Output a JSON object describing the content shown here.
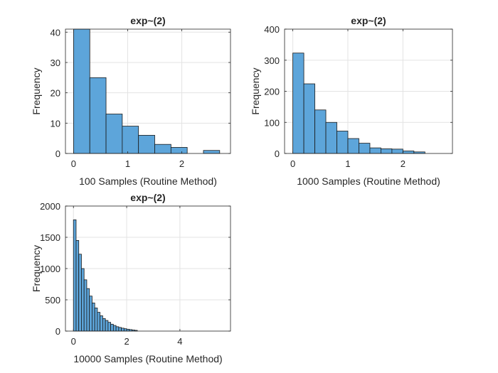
{
  "figure": {
    "background": "#ffffff"
  },
  "chart_data": [
    {
      "type": "bar",
      "title": "exp~(2)",
      "xlabel": "100 Samples (Routine Method)",
      "ylabel": "Frequency",
      "bar_color": "#5DA5DA",
      "edge_color": "#1a1a1a",
      "xlim": [
        -0.15,
        2.9
      ],
      "ylim": [
        0,
        41
      ],
      "xticks": [
        0,
        1,
        2
      ],
      "yticks": [
        0,
        10,
        20,
        30,
        40
      ],
      "grid": true,
      "bin_edges": [
        0,
        0.3,
        0.6,
        0.9,
        1.2,
        1.5,
        1.8,
        2.1,
        2.4,
        2.7
      ],
      "values": [
        41,
        25,
        13,
        9,
        6,
        3,
        2,
        0,
        1
      ]
    },
    {
      "type": "bar",
      "title": "exp~(2)",
      "xlabel": "1000 Samples (Routine Method)",
      "ylabel": "Frequency",
      "bar_color": "#5DA5DA",
      "edge_color": "#1a1a1a",
      "xlim": [
        -0.15,
        2.9
      ],
      "ylim": [
        0,
        400
      ],
      "xticks": [
        0,
        1,
        2
      ],
      "yticks": [
        0,
        100,
        200,
        300,
        400
      ],
      "grid": true,
      "bin_edges": [
        0,
        0.2,
        0.4,
        0.6,
        0.8,
        1.0,
        1.2,
        1.4,
        1.6,
        1.8,
        2.0,
        2.2,
        2.4
      ],
      "values": [
        323,
        224,
        140,
        100,
        72,
        48,
        33,
        18,
        15,
        14,
        8,
        5
      ]
    },
    {
      "type": "bar",
      "title": "exp~(2)",
      "xlabel": "10000 Samples (Routine Method)",
      "ylabel": "Frequency",
      "bar_color": "#5DA5DA",
      "edge_color": "#1a1a1a",
      "xlim": [
        -0.3,
        5.9
      ],
      "ylim": [
        0,
        2000
      ],
      "xticks": [
        0,
        2,
        4
      ],
      "yticks": [
        0,
        500,
        1000,
        1500,
        2000
      ],
      "grid": true,
      "bin_edges": [
        0,
        0.1,
        0.2,
        0.3,
        0.4,
        0.5,
        0.6,
        0.7,
        0.8,
        0.9,
        1.0,
        1.1,
        1.2,
        1.3,
        1.4,
        1.5,
        1.6,
        1.7,
        1.8,
        1.9,
        2.0,
        2.1,
        2.2,
        2.3,
        2.4
      ],
      "values": [
        1780,
        1450,
        1230,
        1000,
        820,
        680,
        560,
        450,
        370,
        300,
        245,
        200,
        170,
        140,
        110,
        90,
        70,
        58,
        47,
        38,
        30,
        24,
        18,
        12
      ]
    }
  ]
}
